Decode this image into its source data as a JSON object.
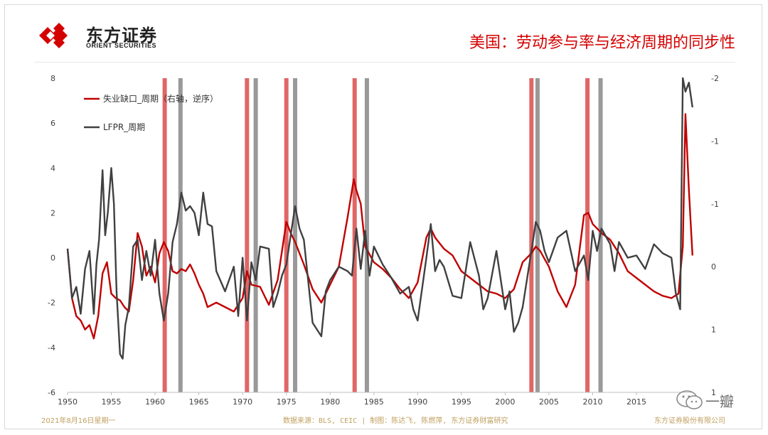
{
  "logo": {
    "name_cn": "东方证券",
    "name_en": "ORIENT SECURITIES"
  },
  "title": "美国：劳动参与率与经济周期的同步性",
  "footer": {
    "date": "2021年8月16日星期一",
    "source": "数据来源：BLS, CEIC | 制图：陈达飞, 陈燃萍, 东方证券财富研究",
    "company": "东方证券股份有限公司"
  },
  "watermark": "一瓣",
  "colors": {
    "red": "#c00000",
    "dark": "#404040",
    "red_bar": "#e06666",
    "gray_bar": "#999999"
  },
  "chart_data": {
    "type": "line",
    "x_ticks": [
      "1950",
      "1955",
      "1960",
      "1965",
      "1970",
      "1975",
      "1980",
      "1985",
      "1990",
      "1995",
      "2000",
      "2005",
      "2010",
      "2015"
    ],
    "xlim": [
      1950,
      2021.5
    ],
    "y_left": {
      "ticks": [
        "8",
        "6",
        "4",
        "2",
        "0",
        "-2",
        "-4",
        "-6"
      ],
      "lim": [
        -6,
        8
      ]
    },
    "y_right": {
      "ticks": [
        "-2",
        "-1",
        "-1",
        "0",
        "1",
        "1"
      ],
      "lim": [
        -2,
        1
      ],
      "inverted": true
    },
    "recession_bars_red": [
      1961.1,
      1970.5,
      1975.0,
      1982.8,
      2003.0,
      2009.4
    ],
    "recession_bars_gray": [
      1962.9,
      1971.5,
      1976.0,
      1984.2,
      2003.7,
      2010.9
    ],
    "series": [
      {
        "name": "失业缺口_周期（右轴，逆序）",
        "color": "#c00000",
        "x": [
          1950,
          1950.5,
          1951,
          1951.5,
          1952,
          1952.5,
          1953,
          1953.5,
          1954,
          1954.5,
          1955,
          1955.5,
          1956,
          1956.5,
          1957,
          1957.5,
          1958,
          1958.5,
          1959,
          1959.5,
          1960,
          1960.5,
          1961,
          1961.5,
          1962,
          1962.5,
          1963,
          1963.5,
          1964,
          1964.5,
          1965,
          1965.5,
          1966,
          1967,
          1968,
          1969,
          1970,
          1970.5,
          1971,
          1972,
          1973,
          1974,
          1975,
          1975.5,
          1976,
          1977,
          1978,
          1979,
          1980,
          1981,
          1982,
          1982.7,
          1983,
          1983.5,
          1984,
          1985,
          1986,
          1987,
          1988,
          1989,
          1990,
          1991,
          1991.5,
          1992,
          1993,
          1994,
          1995,
          1996,
          1997,
          1998,
          1999,
          2000,
          2001,
          2002,
          2003,
          2003.5,
          2004,
          2005,
          2006,
          2007,
          2008,
          2009,
          2009.5,
          2010,
          2011,
          2012,
          2013,
          2014,
          2015,
          2016,
          2017,
          2018,
          2019,
          2019.8,
          2020.3,
          2020.6,
          2021,
          2021.4
        ],
        "y": [
          0.4,
          -1.8,
          -2.6,
          -2.8,
          -3.2,
          -3.0,
          -3.6,
          -2.6,
          -0.7,
          -0.2,
          -1.6,
          -1.8,
          -1.9,
          -2.2,
          -2.4,
          -1.0,
          1.1,
          0.5,
          -0.8,
          -0.4,
          -1.1,
          0.2,
          0.7,
          0.3,
          -0.6,
          -0.7,
          -0.5,
          -0.6,
          -0.3,
          -0.7,
          -1.2,
          -1.6,
          -2.2,
          -2.0,
          -2.2,
          -2.4,
          -1.8,
          -0.6,
          -1.2,
          -1.3,
          -2.1,
          -1.0,
          1.6,
          1.1,
          0.7,
          -0.3,
          -1.4,
          -2.0,
          -1.2,
          -0.4,
          1.8,
          3.5,
          3.0,
          2.4,
          0.5,
          -0.2,
          -0.5,
          -0.9,
          -1.4,
          -1.8,
          -1.1,
          0.9,
          1.3,
          0.9,
          0.4,
          0.1,
          -0.6,
          -0.9,
          -1.2,
          -1.5,
          -1.6,
          -1.8,
          -1.4,
          -0.2,
          0.2,
          0.5,
          0.3,
          -0.4,
          -1.5,
          -2.2,
          -1.2,
          1.9,
          2.0,
          1.5,
          1.1,
          0.8,
          0.2,
          -0.6,
          -0.9,
          -1.2,
          -1.5,
          -1.7,
          -1.8,
          -1.6,
          0.5,
          6.4,
          3.0,
          0.1
        ]
      },
      {
        "name": "LFPR_周期",
        "color": "#404040",
        "x": [
          1950,
          1950.5,
          1951,
          1951.5,
          1952,
          1952.5,
          1953,
          1953.3,
          1953.6,
          1954,
          1954.3,
          1954.6,
          1955,
          1955.3,
          1955.6,
          1956,
          1956.3,
          1956.6,
          1957,
          1957.5,
          1958,
          1958.5,
          1959,
          1959.5,
          1960,
          1960.5,
          1961,
          1961.5,
          1962,
          1962.5,
          1963,
          1963.5,
          1964,
          1964.5,
          1965,
          1965.5,
          1966,
          1966.5,
          1967,
          1968,
          1969,
          1969.5,
          1970,
          1970.5,
          1971,
          1971.5,
          1972,
          1973,
          1973.5,
          1974,
          1974.5,
          1975,
          1975.5,
          1976,
          1976.5,
          1977,
          1978,
          1979,
          1979.5,
          1980,
          1981,
          1982,
          1982.5,
          1983,
          1983.5,
          1984,
          1984.5,
          1985,
          1986,
          1987,
          1988,
          1989,
          1989.5,
          1990,
          1991,
          1991.5,
          1992,
          1992.5,
          1993,
          1994,
          1995,
          1996,
          1997,
          1997.5,
          1998,
          1999,
          2000,
          2000.5,
          2001,
          2001.5,
          2002,
          2003,
          2003.5,
          2004,
          2004.5,
          2005,
          2006,
          2007,
          2008,
          2009,
          2009.5,
          2010,
          2010.5,
          2011,
          2012,
          2012.5,
          2013,
          2014,
          2015,
          2016,
          2017,
          2018,
          2019,
          2019.5,
          2020,
          2020.3,
          2020.6,
          2021,
          2021.4
        ],
        "y": [
          0.4,
          -1.8,
          -1.3,
          -2.5,
          -0.5,
          0.3,
          -2.5,
          -0.3,
          0.8,
          3.9,
          1.0,
          2.0,
          4.0,
          2.4,
          -1.5,
          -4.3,
          -4.5,
          -3.0,
          -2.2,
          0.5,
          0.8,
          -1.0,
          0.3,
          -0.8,
          0.8,
          -1.6,
          -2.8,
          -1.6,
          0.7,
          1.5,
          2.9,
          2.1,
          2.3,
          2.0,
          1.0,
          2.9,
          1.5,
          1.4,
          -0.6,
          -1.5,
          -0.4,
          -2.6,
          0.0,
          -2.8,
          -0.2,
          -1.0,
          0.5,
          0.4,
          -2.2,
          -1.6,
          -0.8,
          -0.3,
          1.0,
          2.3,
          1.3,
          0.8,
          -2.9,
          -3.5,
          -1.5,
          -1.0,
          -0.4,
          -0.6,
          -0.8,
          1.3,
          -0.5,
          1.2,
          -0.8,
          0.5,
          -0.3,
          -0.9,
          -1.6,
          -1.3,
          -2.3,
          -2.8,
          0.0,
          1.5,
          -0.6,
          -0.1,
          -0.4,
          -1.7,
          -1.8,
          0.7,
          -0.8,
          -2.3,
          -1.8,
          0.3,
          -2.3,
          -1.5,
          -3.3,
          -2.9,
          -2.2,
          0.3,
          1.6,
          1.2,
          0.3,
          -0.2,
          0.9,
          1.2,
          -0.6,
          0.1,
          -1.0,
          1.2,
          0.3,
          1.3,
          0.6,
          -0.6,
          0.7,
          0.0,
          0.1,
          -0.5,
          0.6,
          0.2,
          0.0,
          -1.6,
          -2.3,
          8.0,
          7.4,
          7.8,
          6.7
        ]
      }
    ]
  }
}
